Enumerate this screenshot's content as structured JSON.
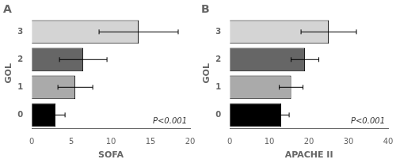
{
  "chart_data": [
    {
      "type": "bar",
      "orientation": "horizontal",
      "title": "A",
      "categories": [
        "0",
        "1",
        "2",
        "3"
      ],
      "values": [
        3.0,
        5.5,
        6.5,
        13.5
      ],
      "errors": [
        1.2,
        2.2,
        3.0,
        5.0
      ],
      "colors": [
        "#000000",
        "#aaaaaa",
        "#666666",
        "#d4d4d4"
      ],
      "xlabel": "SOFA",
      "ylabel": "GOL",
      "xlim": [
        0,
        20
      ],
      "xticks": [
        0,
        5,
        10,
        15,
        20
      ],
      "annotations": [
        "P<0.001"
      ],
      "grid": false
    },
    {
      "type": "bar",
      "orientation": "horizontal",
      "title": "B",
      "categories": [
        "0",
        "1",
        "2",
        "3"
      ],
      "values": [
        13.0,
        15.5,
        19.0,
        25.0
      ],
      "errors": [
        2.0,
        3.0,
        3.5,
        7.0
      ],
      "colors": [
        "#000000",
        "#aaaaaa",
        "#666666",
        "#d4d4d4"
      ],
      "xlabel": "APACHE II",
      "ylabel": "GOL",
      "xlim": [
        0,
        40
      ],
      "xticks": [
        0,
        10,
        20,
        30,
        40
      ],
      "annotations": [
        "P<0.001"
      ],
      "grid": false
    }
  ]
}
